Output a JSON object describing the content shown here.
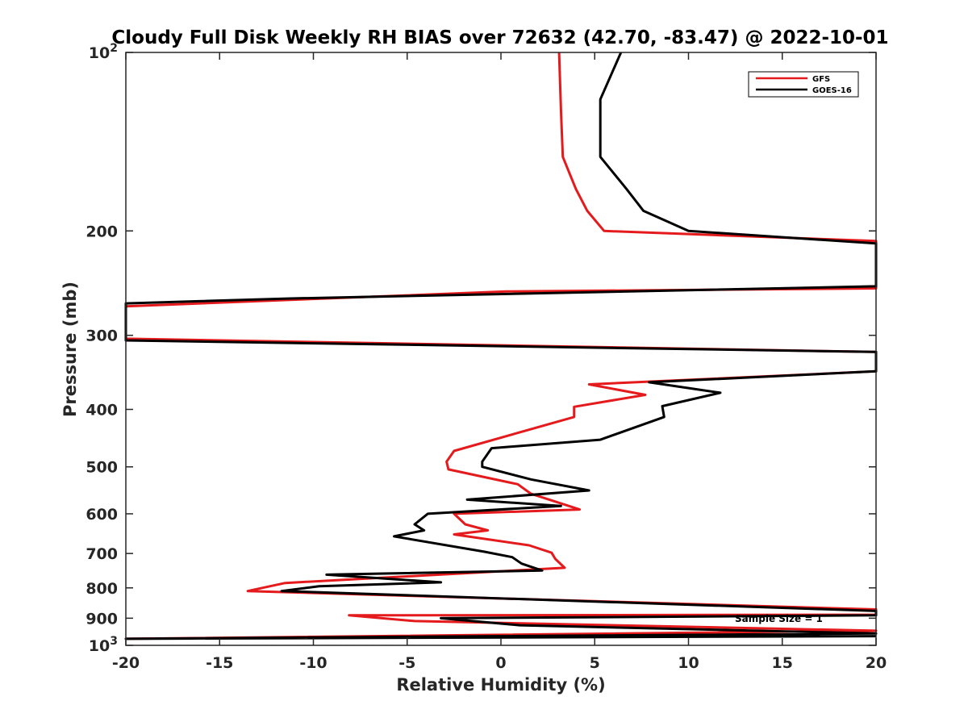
{
  "chart_data": {
    "type": "line",
    "title": "Cloudy Full Disk Weekly RH BIAS over 72632 (42.70, -83.47) @ 2022-10-01",
    "xlabel": "Relative Humidity (%)",
    "ylabel": "Pressure (mb)",
    "xlim": [
      -20,
      20
    ],
    "ylim": [
      100,
      1000
    ],
    "yscale": "log",
    "yreversed": true,
    "grid": false,
    "legend_position": "top-right",
    "x_ticks": [
      "-20",
      "-15",
      "-10",
      "-5",
      "0",
      "5",
      "10",
      "15",
      "20"
    ],
    "y_ticks": [
      {
        "value": 100,
        "label": "10",
        "sup": "2"
      },
      {
        "value": 200,
        "label": "200",
        "sup": ""
      },
      {
        "value": 300,
        "label": "300",
        "sup": ""
      },
      {
        "value": 400,
        "label": "400",
        "sup": ""
      },
      {
        "value": 500,
        "label": "500",
        "sup": ""
      },
      {
        "value": 600,
        "label": "600",
        "sup": ""
      },
      {
        "value": 700,
        "label": "700",
        "sup": ""
      },
      {
        "value": 800,
        "label": "800",
        "sup": ""
      },
      {
        "value": 900,
        "label": "900",
        "sup": ""
      },
      {
        "value": 1000,
        "label": "10",
        "sup": "3"
      }
    ],
    "annotation": "Sample Size = 1",
    "series": [
      {
        "name": "GFS",
        "color": "#e41a1c",
        "points": [
          [
            3.1,
            100
          ],
          [
            3.2,
            125
          ],
          [
            3.3,
            150
          ],
          [
            4.0,
            170
          ],
          [
            4.6,
            185
          ],
          [
            5.5,
            200
          ],
          [
            20,
            208
          ],
          [
            20,
            250
          ],
          [
            0.3,
            253
          ],
          [
            -20,
            268
          ],
          [
            -20,
            304
          ],
          [
            20,
            320
          ],
          [
            20,
            345
          ],
          [
            4.7,
            363
          ],
          [
            7.7,
            378
          ],
          [
            3.9,
            396
          ],
          [
            3.9,
            412
          ],
          [
            -2.5,
            470
          ],
          [
            -2.9,
            490
          ],
          [
            -2.8,
            505
          ],
          [
            0.9,
            535
          ],
          [
            1.6,
            555
          ],
          [
            4.2,
            590
          ],
          [
            -2.5,
            600
          ],
          [
            -1.9,
            625
          ],
          [
            -0.7,
            640
          ],
          [
            -2.5,
            650
          ],
          [
            1.5,
            678
          ],
          [
            2.7,
            698
          ],
          [
            2.9,
            715
          ],
          [
            3.4,
            740
          ],
          [
            -11.5,
            785
          ],
          [
            -13.5,
            810
          ],
          [
            20,
            870
          ],
          [
            20,
            888
          ],
          [
            -8.1,
            890
          ],
          [
            -4.6,
            910
          ],
          [
            20,
            945
          ],
          [
            -20,
            975
          ]
        ]
      },
      {
        "name": "GOES-16",
        "color": "#000000",
        "points": [
          [
            6.4,
            100
          ],
          [
            5.3,
            120
          ],
          [
            5.3,
            150
          ],
          [
            6.7,
            170
          ],
          [
            7.6,
            185
          ],
          [
            10,
            200
          ],
          [
            20,
            210
          ],
          [
            20,
            248
          ],
          [
            -11.2,
            260
          ],
          [
            -20,
            265
          ],
          [
            -20,
            306
          ],
          [
            20,
            320
          ],
          [
            20,
            345
          ],
          [
            7.9,
            360
          ],
          [
            11.7,
            375
          ],
          [
            8.6,
            395
          ],
          [
            8.7,
            412
          ],
          [
            5.3,
            450
          ],
          [
            -0.5,
            465
          ],
          [
            -1.0,
            490
          ],
          [
            -1.0,
            500
          ],
          [
            1.6,
            525
          ],
          [
            4.7,
            548
          ],
          [
            -1.8,
            568
          ],
          [
            3.2,
            582
          ],
          [
            -3.9,
            600
          ],
          [
            -4.6,
            625
          ],
          [
            -4.1,
            640
          ],
          [
            -5.7,
            655
          ],
          [
            -0.9,
            695
          ],
          [
            0.6,
            710
          ],
          [
            1.1,
            728
          ],
          [
            2.2,
            748
          ],
          [
            -9.3,
            760
          ],
          [
            -3.2,
            783
          ],
          [
            -9.7,
            795
          ],
          [
            -11.7,
            810
          ],
          [
            20,
            875
          ],
          [
            20,
            890
          ],
          [
            -3.2,
            900
          ],
          [
            1.0,
            925
          ],
          [
            20,
            955
          ],
          [
            -20,
            975
          ],
          [
            20,
            965
          ]
        ]
      }
    ]
  }
}
